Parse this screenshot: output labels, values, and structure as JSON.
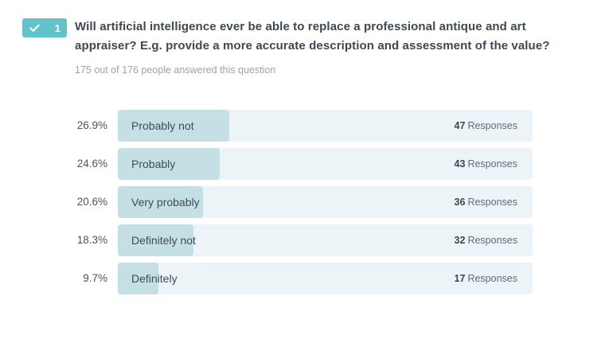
{
  "colors": {
    "badge_teal": "#62C2CA",
    "bar_fill": "#C5E0E4",
    "bar_track": "#EDF4F7",
    "question_text": "#3D4852",
    "subtitle_text": "#9BA4AB"
  },
  "question": {
    "badge_number": "1",
    "badge_check_icon": "check-icon",
    "title_lines": [
      "Will artificial intelligence ever be able to replace a professional antique and art",
      "appraiser? E.g. provide a more accurate description and assessment of the value?"
    ],
    "subtitle": "175 out of 176 people answered this question"
  },
  "chart_data": {
    "type": "bar",
    "orientation": "horizontal",
    "title": "",
    "xlabel": "",
    "ylabel": "",
    "xlim_percent": [
      0,
      100
    ],
    "grid": false,
    "legend": false,
    "categories": [
      "Probably not",
      "Probably",
      "Very probably",
      "Definitely not",
      "Definitely"
    ],
    "percent_labels": [
      "26.9%",
      "24.6%",
      "20.6%",
      "18.3%",
      "9.7%"
    ],
    "percentages": [
      26.9,
      24.6,
      20.6,
      18.3,
      9.7
    ],
    "values": [
      47,
      43,
      36,
      32,
      17
    ],
    "responses_label": "Responses"
  }
}
